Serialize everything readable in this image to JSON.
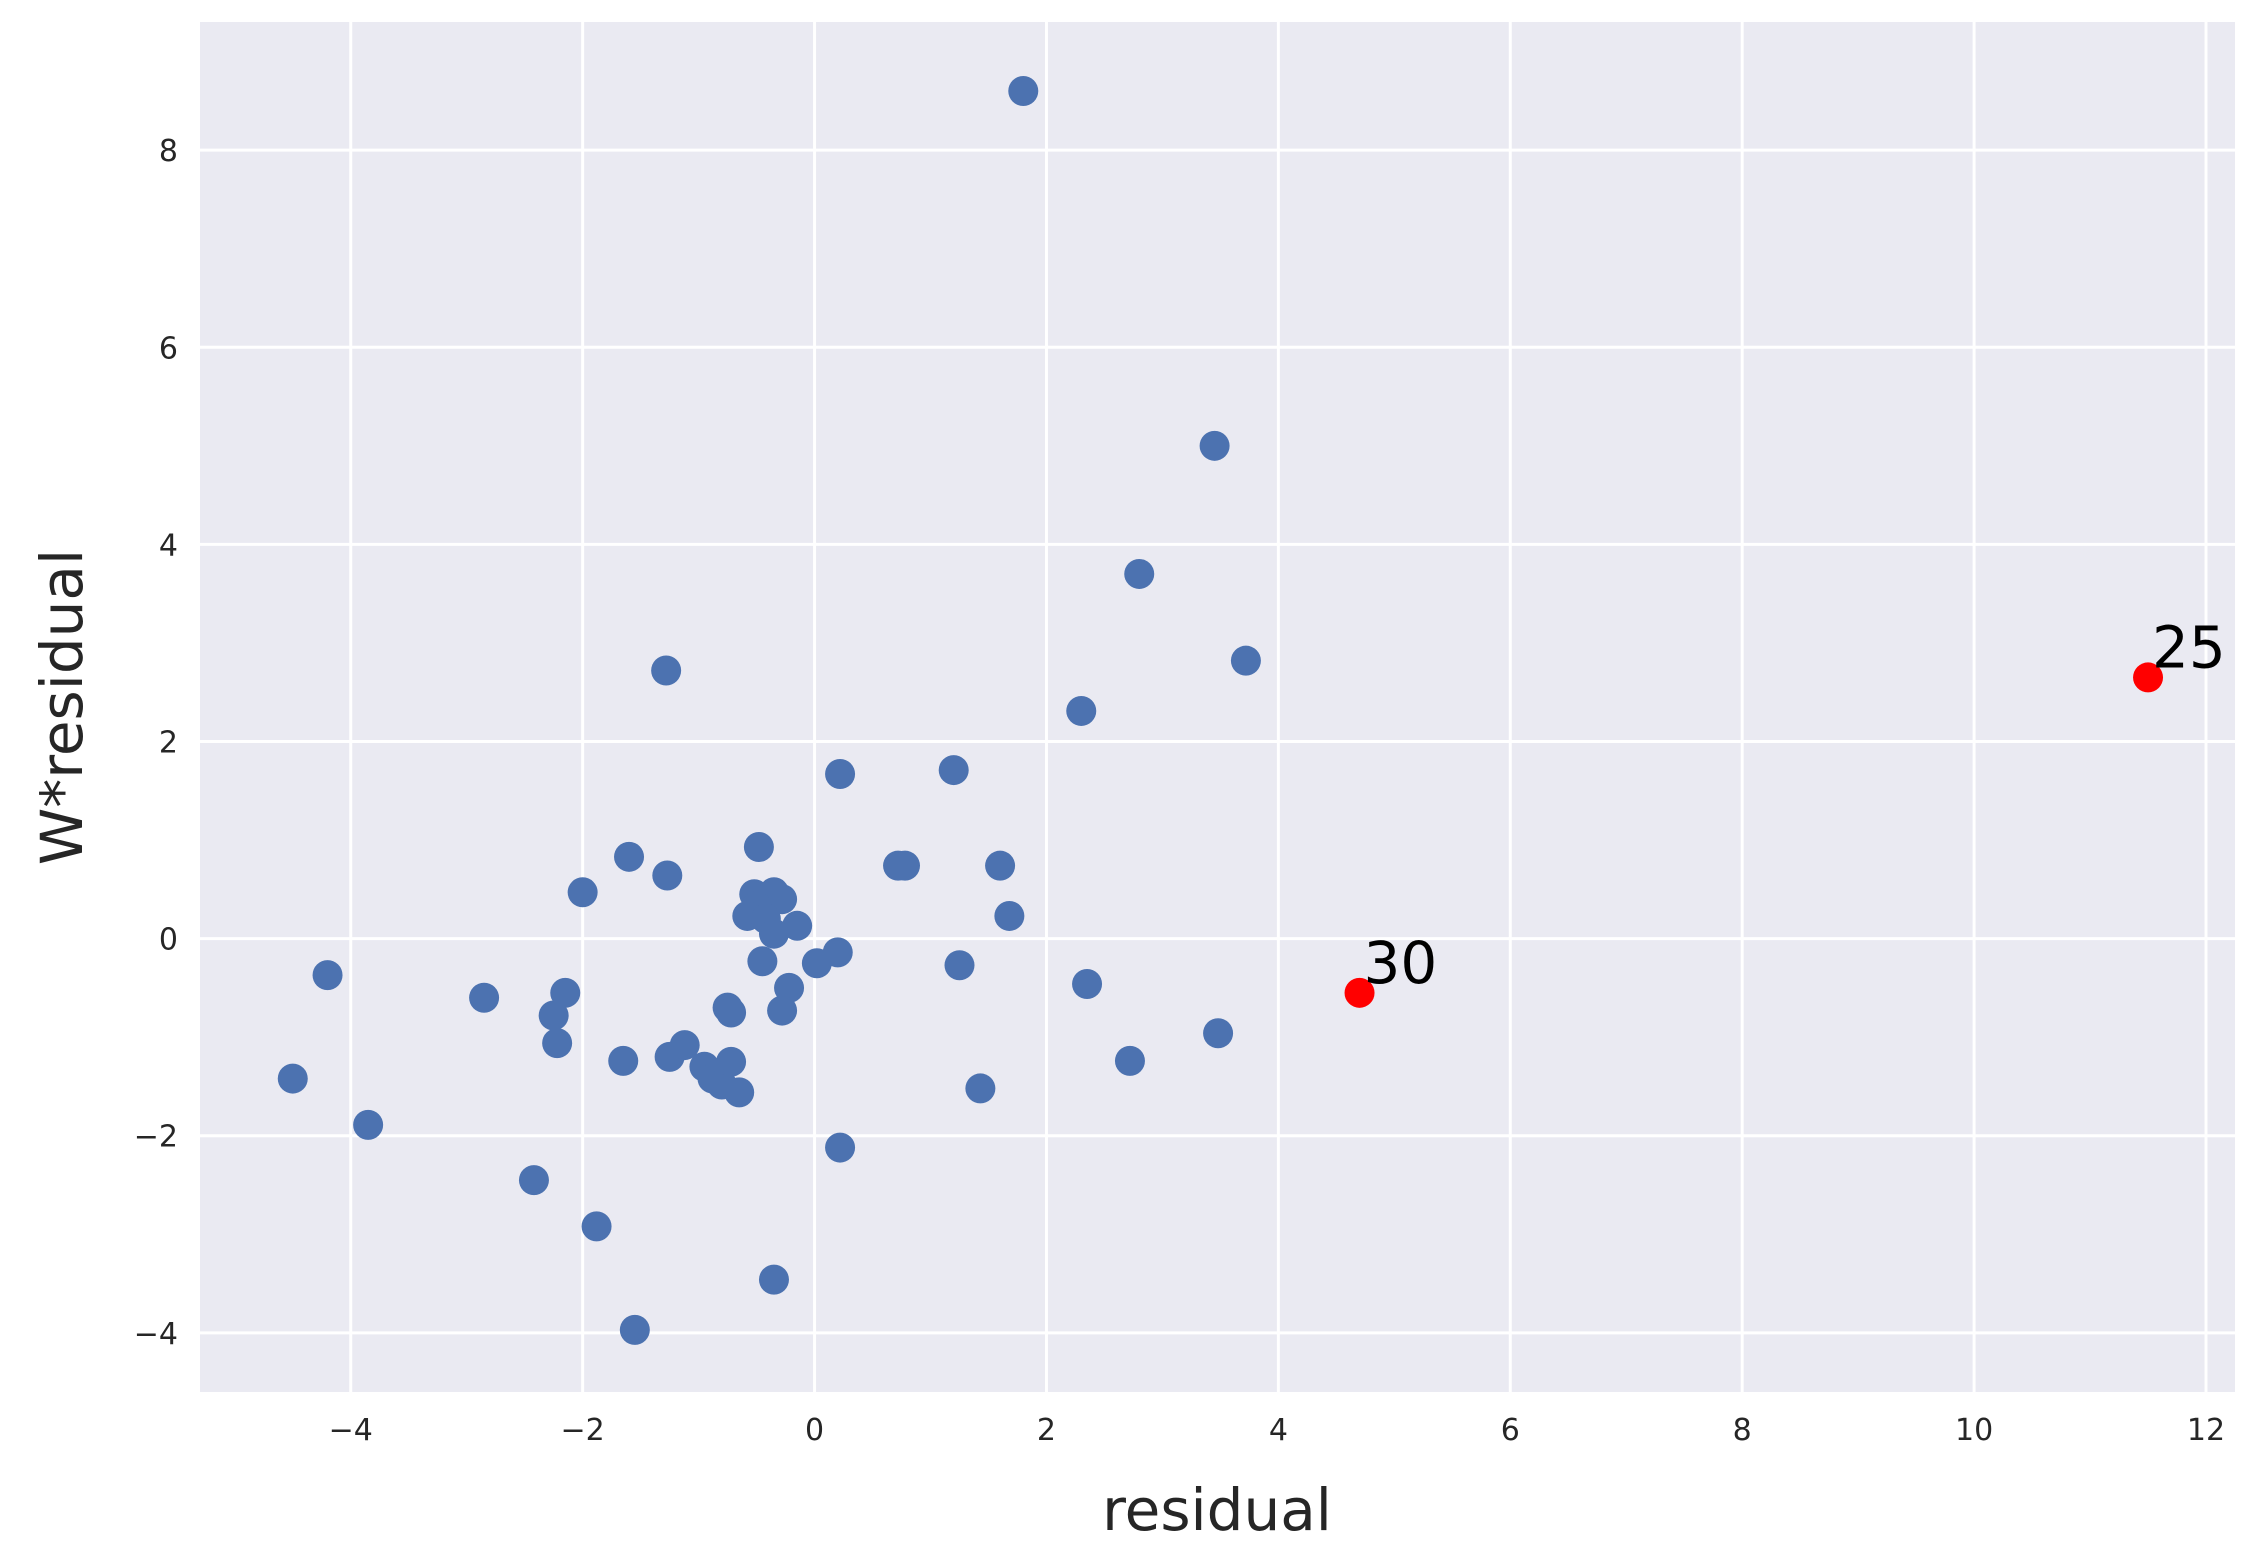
{
  "chart_data": {
    "type": "scatter",
    "title": "",
    "xlabel": "residual",
    "ylabel": "W*residual",
    "xlim": [
      -5.3,
      12.25
    ],
    "ylim": [
      -4.6,
      9.3
    ],
    "xticks": [
      -4,
      -2,
      0,
      2,
      4,
      6,
      8,
      10,
      12
    ],
    "yticks": [
      -4,
      -2,
      0,
      2,
      4,
      6,
      8
    ],
    "grid": true,
    "colors": {
      "background": "#eaeaf2",
      "grid": "#ffffff",
      "points": "#4c72b0",
      "highlight": "#ff0000"
    },
    "points": [
      {
        "x": 1.8,
        "y": 8.6
      },
      {
        "x": 3.45,
        "y": 5.0
      },
      {
        "x": 2.8,
        "y": 3.7
      },
      {
        "x": 3.72,
        "y": 2.82
      },
      {
        "x": 2.3,
        "y": 2.31
      },
      {
        "x": -1.28,
        "y": 2.72
      },
      {
        "x": 0.22,
        "y": 1.67
      },
      {
        "x": 1.2,
        "y": 1.71
      },
      {
        "x": -0.48,
        "y": 0.93
      },
      {
        "x": -1.6,
        "y": 0.83
      },
      {
        "x": -1.27,
        "y": 0.64
      },
      {
        "x": -2.0,
        "y": 0.47
      },
      {
        "x": -0.52,
        "y": 0.45
      },
      {
        "x": -0.35,
        "y": 0.47
      },
      {
        "x": -0.28,
        "y": 0.4
      },
      {
        "x": -0.5,
        "y": 0.33
      },
      {
        "x": -0.58,
        "y": 0.23
      },
      {
        "x": -0.42,
        "y": 0.2
      },
      {
        "x": -0.15,
        "y": 0.13
      },
      {
        "x": -0.35,
        "y": 0.05
      },
      {
        "x": 0.72,
        "y": 0.74
      },
      {
        "x": 0.78,
        "y": 0.74
      },
      {
        "x": 1.6,
        "y": 0.74
      },
      {
        "x": 1.68,
        "y": 0.23
      },
      {
        "x": 0.2,
        "y": -0.14
      },
      {
        "x": 0.02,
        "y": -0.25
      },
      {
        "x": -0.45,
        "y": -0.23
      },
      {
        "x": -0.22,
        "y": -0.5
      },
      {
        "x": -0.28,
        "y": -0.73
      },
      {
        "x": 1.25,
        "y": -0.27
      },
      {
        "x": 2.35,
        "y": -0.46
      },
      {
        "x": -4.2,
        "y": -0.37
      },
      {
        "x": -2.85,
        "y": -0.6
      },
      {
        "x": -2.15,
        "y": -0.55
      },
      {
        "x": -2.25,
        "y": -0.78
      },
      {
        "x": -2.22,
        "y": -1.06
      },
      {
        "x": -0.75,
        "y": -0.7
      },
      {
        "x": -0.72,
        "y": -0.75
      },
      {
        "x": -1.65,
        "y": -1.24
      },
      {
        "x": -1.25,
        "y": -1.2
      },
      {
        "x": -1.12,
        "y": -1.08
      },
      {
        "x": -0.95,
        "y": -1.3
      },
      {
        "x": -0.88,
        "y": -1.42
      },
      {
        "x": -0.8,
        "y": -1.48
      },
      {
        "x": -0.72,
        "y": -1.25
      },
      {
        "x": -0.65,
        "y": -1.56
      },
      {
        "x": 1.43,
        "y": -1.52
      },
      {
        "x": 2.72,
        "y": -1.24
      },
      {
        "x": 3.48,
        "y": -0.96
      },
      {
        "x": -4.5,
        "y": -1.42
      },
      {
        "x": -3.85,
        "y": -1.89
      },
      {
        "x": -2.42,
        "y": -2.45
      },
      {
        "x": -1.88,
        "y": -2.92
      },
      {
        "x": 0.22,
        "y": -2.12
      },
      {
        "x": -0.35,
        "y": -3.46
      },
      {
        "x": -1.55,
        "y": -3.97
      }
    ],
    "highlighted": [
      {
        "label": "30",
        "x": 4.7,
        "y": -0.55
      },
      {
        "label": "25",
        "x": 11.5,
        "y": 2.65
      }
    ]
  }
}
